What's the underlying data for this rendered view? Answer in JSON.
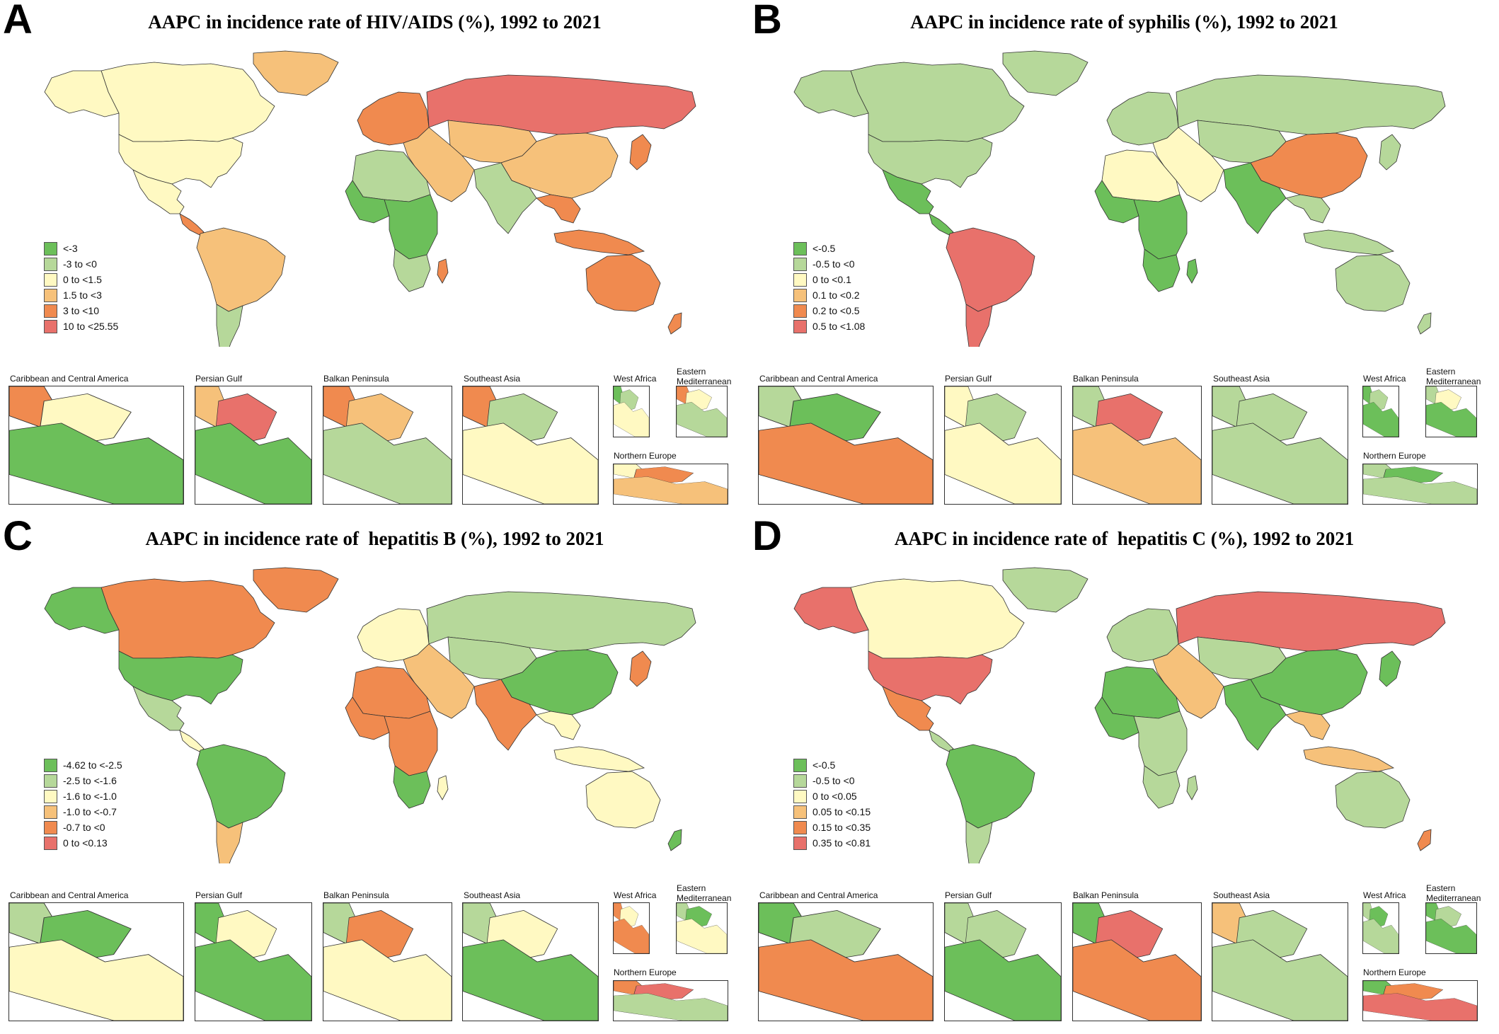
{
  "palette": [
    "#6cbf5a",
    "#b6d89a",
    "#fff9c2",
    "#f6c17a",
    "#f08a4f",
    "#e8716b"
  ],
  "panels": [
    {
      "letter": "A",
      "title": "AAPC in incidence rate of HIV/AIDS (%), 1992 to 2021",
      "legend": [
        "<-3",
        "-3 to <0",
        "0 to <1.5",
        "1.5 to <3",
        "3 to <10",
        "10 to <25.55"
      ],
      "insets": [
        "Caribbean and Central America",
        "Persian Gulf",
        "Balkan Peninsula",
        "Southeast Asia",
        "West Africa",
        "Eastern Mediterranean",
        "Northern Europe"
      ]
    },
    {
      "letter": "B",
      "title": "AAPC in incidence rate of syphilis (%), 1992 to 2021",
      "legend": [
        "<-0.5",
        "-0.5 to <0",
        "0 to <0.1",
        "0.1 to <0.2",
        "0.2 to <0.5",
        "0.5 to <1.08"
      ],
      "insets": [
        "Caribbean and Central America",
        "Persian Gulf",
        "Balkan Peninsula",
        "Southeast Asia",
        "West Africa",
        "Eastern Mediterranean",
        "Northern Europe"
      ]
    },
    {
      "letter": "C",
      "title": "AAPC in incidence rate of  hepatitis B (%), 1992 to 2021",
      "legend": [
        "-4.62 to <-2.5",
        "-2.5 to <-1.6",
        "-1.6 to <-1.0",
        "-1.0 to <-0.7",
        "-0.7 to <0",
        "0 to <0.13"
      ],
      "insets": [
        "Caribbean and Central America",
        "Persian Gulf",
        "Balkan Peninsula",
        "Southeast Asia",
        "West Africa",
        "Eastern Mediterranean",
        "Northern Europe"
      ]
    },
    {
      "letter": "D",
      "title": "AAPC in incidence rate of  hepatitis C (%), 1992 to 2021",
      "legend": [
        "<-0.5",
        "-0.5 to <0",
        "0 to <0.05",
        "0.05 to <0.15",
        "0.15 to <0.35",
        "0.35 to <0.81"
      ],
      "insets": [
        "Caribbean and Central America",
        "Persian Gulf",
        "Balkan Peninsula",
        "Southeast Asia",
        "West Africa",
        "Eastern Mediterranean",
        "Northern Europe"
      ]
    }
  ],
  "region_classes": [
    {
      "greenland": 4,
      "canada": 3,
      "usa": 3,
      "mexico": 3,
      "central_america": 5,
      "south_america": 4,
      "southern_cone": 2,
      "europe": 5,
      "russia": 6,
      "central_asia": 4,
      "middle_east": 4,
      "south_asia": 2,
      "china": 4,
      "se_asia": 5,
      "japan": 5,
      "north_africa": 2,
      "west_africa": 1,
      "central_africa": 1,
      "southern_africa": 2,
      "madagascar": 5,
      "australia": 5,
      "new_zealand": 5
    },
    {
      "greenland": 2,
      "canada": 2,
      "usa": 2,
      "mexico": 1,
      "central_america": 1,
      "south_america": 6,
      "southern_cone": 6,
      "europe": 2,
      "russia": 2,
      "central_asia": 2,
      "middle_east": 3,
      "south_asia": 1,
      "china": 5,
      "se_asia": 2,
      "japan": 2,
      "north_africa": 3,
      "west_africa": 1,
      "central_africa": 1,
      "southern_africa": 1,
      "madagascar": 1,
      "australia": 2,
      "new_zealand": 2
    },
    {
      "greenland": 5,
      "canada": 5,
      "usa": 1,
      "mexico": 2,
      "central_america": 3,
      "south_america": 1,
      "southern_cone": 4,
      "europe": 3,
      "russia": 2,
      "central_asia": 2,
      "middle_east": 4,
      "south_asia": 5,
      "china": 1,
      "se_asia": 3,
      "japan": 5,
      "north_africa": 5,
      "west_africa": 5,
      "central_africa": 5,
      "southern_africa": 1,
      "madagascar": 3,
      "australia": 3,
      "new_zealand": 1
    },
    {
      "greenland": 2,
      "canada": 3,
      "usa": 6,
      "mexico": 5,
      "central_america": 2,
      "south_america": 1,
      "southern_cone": 2,
      "europe": 2,
      "russia": 6,
      "central_asia": 2,
      "middle_east": 4,
      "south_asia": 1,
      "china": 1,
      "se_asia": 4,
      "japan": 1,
      "north_africa": 1,
      "west_africa": 1,
      "central_africa": 2,
      "southern_africa": 2,
      "madagascar": 2,
      "australia": 2,
      "new_zealand": 5
    }
  ],
  "inset_fills": [
    [
      [
        5,
        3,
        1
      ],
      [
        4,
        6,
        1
      ],
      [
        5,
        4,
        2
      ],
      [
        5,
        2,
        3
      ],
      [
        1,
        2,
        3
      ],
      [
        5,
        3,
        2
      ],
      [
        3,
        5,
        4
      ]
    ],
    [
      [
        2,
        1,
        5
      ],
      [
        3,
        2,
        3
      ],
      [
        2,
        6,
        4
      ],
      [
        2,
        2,
        2
      ],
      [
        1,
        2,
        1
      ],
      [
        2,
        3,
        1
      ],
      [
        2,
        1,
        2
      ]
    ],
    [
      [
        2,
        1,
        3
      ],
      [
        1,
        3,
        1
      ],
      [
        2,
        5,
        3
      ],
      [
        2,
        3,
        1
      ],
      [
        5,
        3,
        5
      ],
      [
        2,
        1,
        3
      ],
      [
        5,
        6,
        2
      ]
    ],
    [
      [
        1,
        2,
        5
      ],
      [
        2,
        2,
        1
      ],
      [
        1,
        6,
        5
      ],
      [
        4,
        2,
        2
      ],
      [
        2,
        1,
        2
      ],
      [
        1,
        2,
        1
      ],
      [
        1,
        5,
        6
      ]
    ]
  ]
}
